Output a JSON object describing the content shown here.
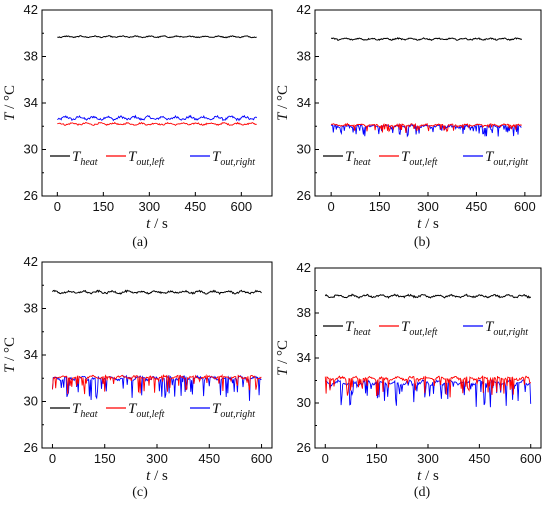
{
  "figure": {
    "panels": [
      "(a)",
      "(b)",
      "(c)",
      "(d)"
    ]
  },
  "colors": {
    "heat": "#000000",
    "left": "#ff0000",
    "right": "#0000ff"
  },
  "chart_data": [
    {
      "type": "line",
      "label": "(a)",
      "xlabel_var": "t",
      "xlabel_unit": " / s",
      "ylabel_var": "T",
      "ylabel_unit": " / °C",
      "xlim": [
        -50,
        700
      ],
      "ylim": [
        26,
        42
      ],
      "xticks": [
        0,
        150,
        300,
        450,
        600
      ],
      "yticks": [
        26,
        30,
        34,
        38,
        42
      ],
      "legend": "bottom",
      "series": [
        {
          "name": "T_heat",
          "legend_main": "T",
          "legend_sub": "heat",
          "x": [
            0,
            650
          ],
          "mean": 39.7,
          "noise": 0.08,
          "spikes": 0
        },
        {
          "name": "T_out,left",
          "legend_main": "T",
          "legend_sub": "out,left",
          "x": [
            0,
            650
          ],
          "mean": 32.2,
          "noise": 0.12,
          "spikes": 0
        },
        {
          "name": "T_out,right",
          "legend_main": "T",
          "legend_sub": "out,right",
          "x": [
            0,
            650
          ],
          "mean": 32.7,
          "noise": 0.2,
          "spikes": 0
        }
      ]
    },
    {
      "type": "line",
      "label": "(b)",
      "xlabel_var": "t",
      "xlabel_unit": " / s",
      "ylabel_var": "T",
      "ylabel_unit": " / °C",
      "xlim": [
        -50,
        650
      ],
      "ylim": [
        26,
        42
      ],
      "xticks": [
        0,
        150,
        300,
        450,
        600
      ],
      "yticks": [
        26,
        30,
        34,
        38,
        42
      ],
      "legend": "bottom",
      "series": [
        {
          "name": "T_heat",
          "legend_main": "T",
          "legend_sub": "heat",
          "x": [
            0,
            590
          ],
          "mean": 39.5,
          "noise": 0.1,
          "spikes": 0
        },
        {
          "name": "T_out,left",
          "legend_main": "T",
          "legend_sub": "out,left",
          "x": [
            0,
            590
          ],
          "mean": 32.1,
          "noise": 0.12,
          "spikes": 0.6
        },
        {
          "name": "T_out,right",
          "legend_main": "T",
          "legend_sub": "out,right",
          "x": [
            0,
            590
          ],
          "mean": 32.0,
          "noise": 0.15,
          "spikes": 0.8
        }
      ]
    },
    {
      "type": "line",
      "label": "(c)",
      "xlabel_var": "t",
      "xlabel_unit": " / s",
      "ylabel_var": "T",
      "ylabel_unit": " / °C",
      "xlim": [
        -30,
        630
      ],
      "ylim": [
        26,
        42
      ],
      "xticks": [
        0,
        150,
        300,
        450,
        600
      ],
      "yticks": [
        26,
        30,
        34,
        38,
        42
      ],
      "legend": "bottom",
      "series": [
        {
          "name": "T_heat",
          "legend_main": "T",
          "legend_sub": "heat",
          "x": [
            0,
            600
          ],
          "mean": 39.4,
          "noise": 0.15,
          "spikes": 0
        },
        {
          "name": "T_out,left",
          "legend_main": "T",
          "legend_sub": "out,left",
          "x": [
            0,
            600
          ],
          "mean": 32.1,
          "noise": 0.15,
          "spikes": 1.4
        },
        {
          "name": "T_out,right",
          "legend_main": "T",
          "legend_sub": "out,right",
          "x": [
            0,
            600
          ],
          "mean": 32.0,
          "noise": 0.2,
          "spikes": 1.8
        }
      ]
    },
    {
      "type": "line",
      "label": "(d)",
      "xlabel_var": "t",
      "xlabel_unit": " / s",
      "ylabel_var": "T",
      "ylabel_unit": " / °C",
      "xlim": [
        -30,
        630
      ],
      "ylim": [
        26,
        42
      ],
      "xticks": [
        0,
        150,
        300,
        450,
        600
      ],
      "yticks": [
        26,
        30,
        34,
        38,
        42
      ],
      "legend": "top",
      "series": [
        {
          "name": "T_heat",
          "legend_main": "T",
          "legend_sub": "heat",
          "x": [
            0,
            600
          ],
          "mean": 39.5,
          "noise": 0.15,
          "spikes": 0
        },
        {
          "name": "T_out,left",
          "legend_main": "T",
          "legend_sub": "out,left",
          "x": [
            0,
            600
          ],
          "mean": 32.2,
          "noise": 0.18,
          "spikes": 1.6
        },
        {
          "name": "T_out,right",
          "legend_main": "T",
          "legend_sub": "out,right",
          "x": [
            0,
            600
          ],
          "mean": 31.8,
          "noise": 0.25,
          "spikes": 2.2
        }
      ]
    }
  ]
}
